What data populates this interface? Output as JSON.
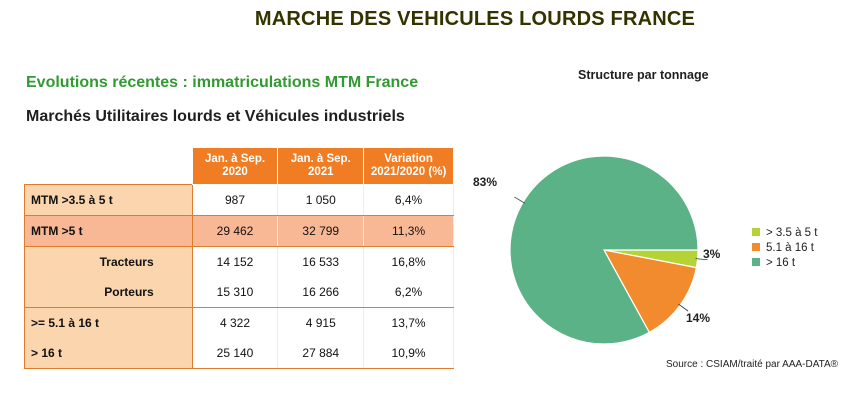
{
  "page": {
    "title": "MARCHE DES VEHICULES LOURDS FRANCE",
    "subtitle_green": "Evolutions récentes : immatriculations MTM France",
    "subtitle_dark": "Marchés Utilitaires lourds et Véhicules industriels"
  },
  "table": {
    "headers": [
      [
        "Jan. à  Sep.",
        "2020"
      ],
      [
        "Jan. à  Sep.",
        "2021"
      ],
      [
        "Variation",
        "2021/2020  (%)"
      ]
    ],
    "rows": [
      {
        "label": "MTM >3.5 à 5 t",
        "v2020": "987",
        "v2021": "1 050",
        "var": "6,4%"
      },
      {
        "label": "MTM >5 t",
        "v2020": "29 462",
        "v2021": "32 799",
        "var": "11,3%"
      },
      {
        "label": "Tracteurs",
        "v2020": "14 152",
        "v2021": "16 533",
        "var": "16,8%"
      },
      {
        "label": "Porteurs",
        "v2020": "15 310",
        "v2021": "16 266",
        "var": "6,2%"
      },
      {
        "label": ">= 5.1 à 16 t",
        "v2020": "4 322",
        "v2021": "4 915",
        "var": "13,7%"
      },
      {
        "label": "> 16 t",
        "v2020": "25 140",
        "v2021": "27 884",
        "var": "10,9%"
      }
    ]
  },
  "chart_data": {
    "type": "pie",
    "title": "Structure par tonnage",
    "categories": [
      "> 3.5 à 5 t",
      "5.1 à 16 t",
      "> 16 t"
    ],
    "values": [
      3,
      14,
      83
    ],
    "value_labels": [
      "3%",
      "14%",
      "83%"
    ],
    "colors": [
      "#b5d334",
      "#f28a2e",
      "#5bb286"
    ],
    "legend": "right"
  },
  "source": "Source : CSIAM/traité par AAA-DATA®"
}
